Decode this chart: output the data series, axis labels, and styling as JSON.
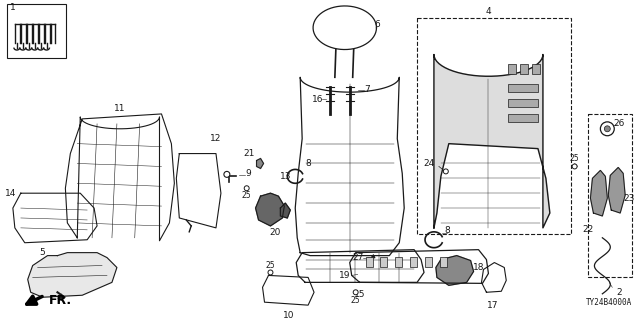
{
  "background_color": "#ffffff",
  "diagram_code": "TY24B4000A",
  "line_color": "#1a1a1a",
  "text_color": "#1a1a1a",
  "label_fontsize": 6.5,
  "small_fontsize": 5.5
}
